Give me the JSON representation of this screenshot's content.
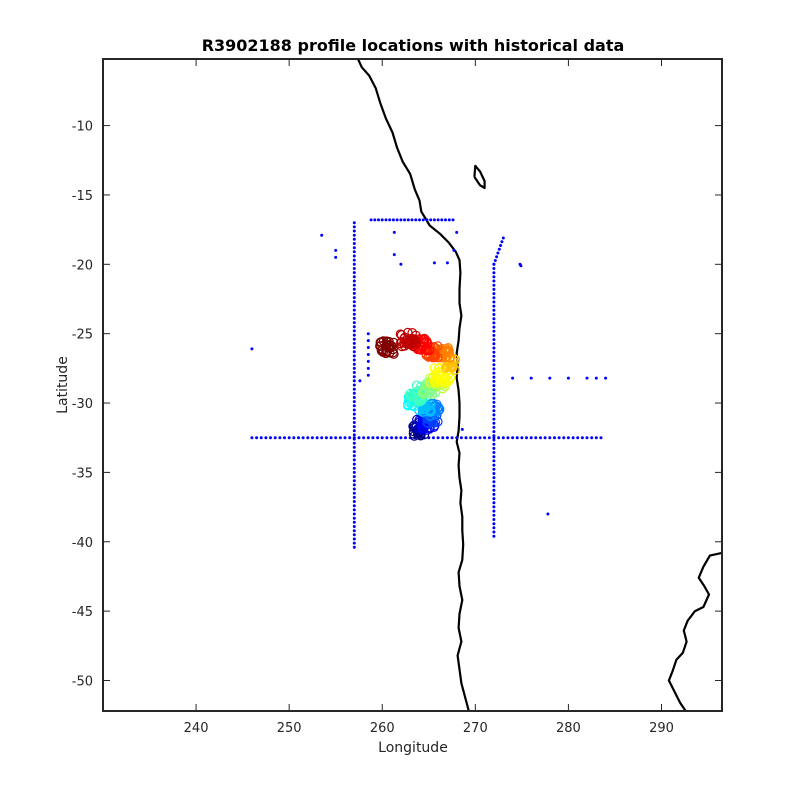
{
  "chart_data": {
    "type": "scatter",
    "title": "R3902188 profile locations with historical data",
    "xlabel": "Longitude",
    "ylabel": "Latitude",
    "xlim": [
      230,
      296.5
    ],
    "ylim": [
      -52.2,
      -5.2
    ],
    "xticks": [
      240,
      250,
      260,
      270,
      280,
      290
    ],
    "xtick_labels": [
      "240",
      "250",
      "260",
      "270",
      "280",
      "290"
    ],
    "yticks": [
      -10,
      -15,
      -20,
      -25,
      -30,
      -35,
      -40,
      -45,
      -50
    ],
    "ytick_labels": [
      "-10",
      "-15",
      "-20",
      "-25",
      "-30",
      "-35",
      "-40",
      "-45",
      "-50"
    ],
    "grid": false,
    "legend": "none",
    "colors": {
      "historical": "#0000ff",
      "coast": "#000000",
      "colormap": "jet"
    },
    "series": [
      {
        "kind": "historical",
        "lines": [
          {
            "from": [
              246,
              -32.5
            ],
            "to": [
              283.5,
              -32.5
            ],
            "step": 0.5
          },
          {
            "from": [
              257,
              -17
            ],
            "to": [
              257,
              -40.4
            ],
            "step": 0.3
          },
          {
            "from": [
              272,
              -20
            ],
            "to": [
              272,
              -39.6
            ],
            "step": 0.3
          },
          {
            "from": [
              258.8,
              -16.8
            ],
            "to": [
              267.6,
              -16.8
            ],
            "step": 0.4
          },
          {
            "from": [
              272,
              -20
            ],
            "to": [
              273,
              -18.1
            ],
            "step": 0.3
          }
        ],
        "points": [
          [
            246,
            -26.1
          ],
          [
            253.5,
            -17.9
          ],
          [
            255,
            -19
          ],
          [
            255,
            -19.5
          ],
          [
            261.3,
            -17.7
          ],
          [
            261.3,
            -19.3
          ],
          [
            262,
            -20
          ],
          [
            265.6,
            -19.9
          ],
          [
            267,
            -19.9
          ],
          [
            267.7,
            -19
          ],
          [
            268,
            -17.7
          ],
          [
            274.8,
            -20
          ],
          [
            274.9,
            -20.1
          ],
          [
            274,
            -28.2
          ],
          [
            276,
            -28.2
          ],
          [
            278,
            -28.2
          ],
          [
            280,
            -28.2
          ],
          [
            282,
            -28.2
          ],
          [
            283,
            -28.2
          ],
          [
            284,
            -28.2
          ],
          [
            277.8,
            -38
          ],
          [
            268.6,
            -31.9
          ],
          [
            257.6,
            -28.4
          ],
          [
            258.5,
            -25
          ],
          [
            258.5,
            -25.5
          ],
          [
            258.5,
            -26
          ],
          [
            258.5,
            -26.5
          ],
          [
            258.5,
            -27
          ],
          [
            258.5,
            -27.5
          ],
          [
            258.5,
            -28
          ]
        ]
      },
      {
        "kind": "profiles",
        "clusters": [
          {
            "lon": 260.5,
            "lat": -26.0,
            "n": 30,
            "spread": 0.8
          },
          {
            "lon": 262.8,
            "lat": -25.4,
            "n": 30,
            "spread": 0.9
          },
          {
            "lon": 264.3,
            "lat": -25.8,
            "n": 25,
            "spread": 0.8
          },
          {
            "lon": 265.3,
            "lat": -26.3,
            "n": 25,
            "spread": 0.7
          },
          {
            "lon": 266.6,
            "lat": -26.4,
            "n": 30,
            "spread": 0.7
          },
          {
            "lon": 267.2,
            "lat": -27.2,
            "n": 15,
            "spread": 0.7
          },
          {
            "lon": 266.5,
            "lat": -28.0,
            "n": 25,
            "spread": 0.9
          },
          {
            "lon": 266.0,
            "lat": -28.5,
            "n": 20,
            "spread": 0.9
          },
          {
            "lon": 265.2,
            "lat": -29.0,
            "n": 25,
            "spread": 0.9
          },
          {
            "lon": 264.0,
            "lat": -29.3,
            "n": 25,
            "spread": 1.0
          },
          {
            "lon": 263.5,
            "lat": -29.8,
            "n": 25,
            "spread": 0.9
          },
          {
            "lon": 264.6,
            "lat": -30.2,
            "n": 20,
            "spread": 0.8
          },
          {
            "lon": 265.4,
            "lat": -30.5,
            "n": 25,
            "spread": 0.8
          },
          {
            "lon": 265.5,
            "lat": -31.0,
            "n": 20,
            "spread": 0.8
          },
          {
            "lon": 265.0,
            "lat": -31.4,
            "n": 20,
            "spread": 0.8
          },
          {
            "lon": 264.4,
            "lat": -31.6,
            "n": 20,
            "spread": 0.8
          },
          {
            "lon": 263.9,
            "lat": -32.0,
            "n": 20,
            "spread": 0.7
          }
        ]
      }
    ],
    "coastline": [
      [
        [
          257.4,
          -5.2
        ],
        [
          257.8,
          -5.8
        ],
        [
          258.6,
          -6.4
        ],
        [
          259.3,
          -7.3
        ],
        [
          259.8,
          -8.4
        ],
        [
          260.4,
          -9.5
        ],
        [
          261.1,
          -10.5
        ],
        [
          261.6,
          -11.6
        ],
        [
          262.2,
          -12.6
        ],
        [
          263.0,
          -13.5
        ],
        [
          263.5,
          -14.6
        ],
        [
          264.0,
          -15.4
        ],
        [
          264.2,
          -16.2
        ],
        [
          265.1,
          -17.2
        ],
        [
          266.2,
          -17.8
        ],
        [
          267.1,
          -18.4
        ],
        [
          267.9,
          -19.1
        ],
        [
          268.3,
          -19.7
        ],
        [
          268.4,
          -20.6
        ],
        [
          268.3,
          -21.8
        ],
        [
          268.3,
          -22.8
        ],
        [
          268.5,
          -23.7
        ],
        [
          268.3,
          -24.6
        ],
        [
          268.2,
          -25.5
        ],
        [
          268.0,
          -26.4
        ],
        [
          268.1,
          -27.3
        ],
        [
          268.0,
          -28.2
        ],
        [
          268.2,
          -29.1
        ],
        [
          268.3,
          -30.0
        ],
        [
          268.3,
          -31.0
        ],
        [
          268.2,
          -32.0
        ],
        [
          268.0,
          -32.8
        ],
        [
          268.3,
          -33.6
        ],
        [
          268.2,
          -34.5
        ],
        [
          268.3,
          -35.4
        ],
        [
          268.5,
          -36.3
        ],
        [
          268.4,
          -37.2
        ],
        [
          268.6,
          -38.2
        ],
        [
          268.6,
          -39.2
        ],
        [
          268.7,
          -40.2
        ],
        [
          268.6,
          -41.3
        ],
        [
          268.2,
          -42.2
        ],
        [
          268.3,
          -43.2
        ],
        [
          268.6,
          -44.2
        ],
        [
          268.3,
          -45.2
        ],
        [
          268.2,
          -46.2
        ],
        [
          268.5,
          -47.2
        ],
        [
          268.1,
          -48.2
        ],
        [
          268.3,
          -49.2
        ],
        [
          268.5,
          -50.2
        ],
        [
          268.9,
          -51.2
        ],
        [
          269.3,
          -52.2
        ]
      ],
      [
        [
          269.9,
          -13.7
        ],
        [
          270.0,
          -12.9
        ],
        [
          270.5,
          -13.3
        ],
        [
          271.0,
          -14.0
        ],
        [
          271.0,
          -14.5
        ],
        [
          270.5,
          -14.3
        ],
        [
          269.9,
          -13.7
        ]
      ],
      [
        [
          296.5,
          -40.8
        ],
        [
          295.2,
          -41.0
        ],
        [
          294.5,
          -41.8
        ],
        [
          294.0,
          -42.6
        ],
        [
          294.6,
          -43.2
        ],
        [
          295.1,
          -43.8
        ],
        [
          294.5,
          -44.7
        ],
        [
          293.6,
          -45.0
        ],
        [
          292.8,
          -45.7
        ],
        [
          292.4,
          -46.4
        ],
        [
          292.7,
          -47.2
        ],
        [
          292.3,
          -48.0
        ],
        [
          291.6,
          -48.5
        ],
        [
          291.2,
          -49.3
        ],
        [
          290.8,
          -50.0
        ],
        [
          291.4,
          -50.8
        ],
        [
          292.0,
          -51.6
        ],
        [
          292.6,
          -52.2
        ]
      ]
    ]
  }
}
